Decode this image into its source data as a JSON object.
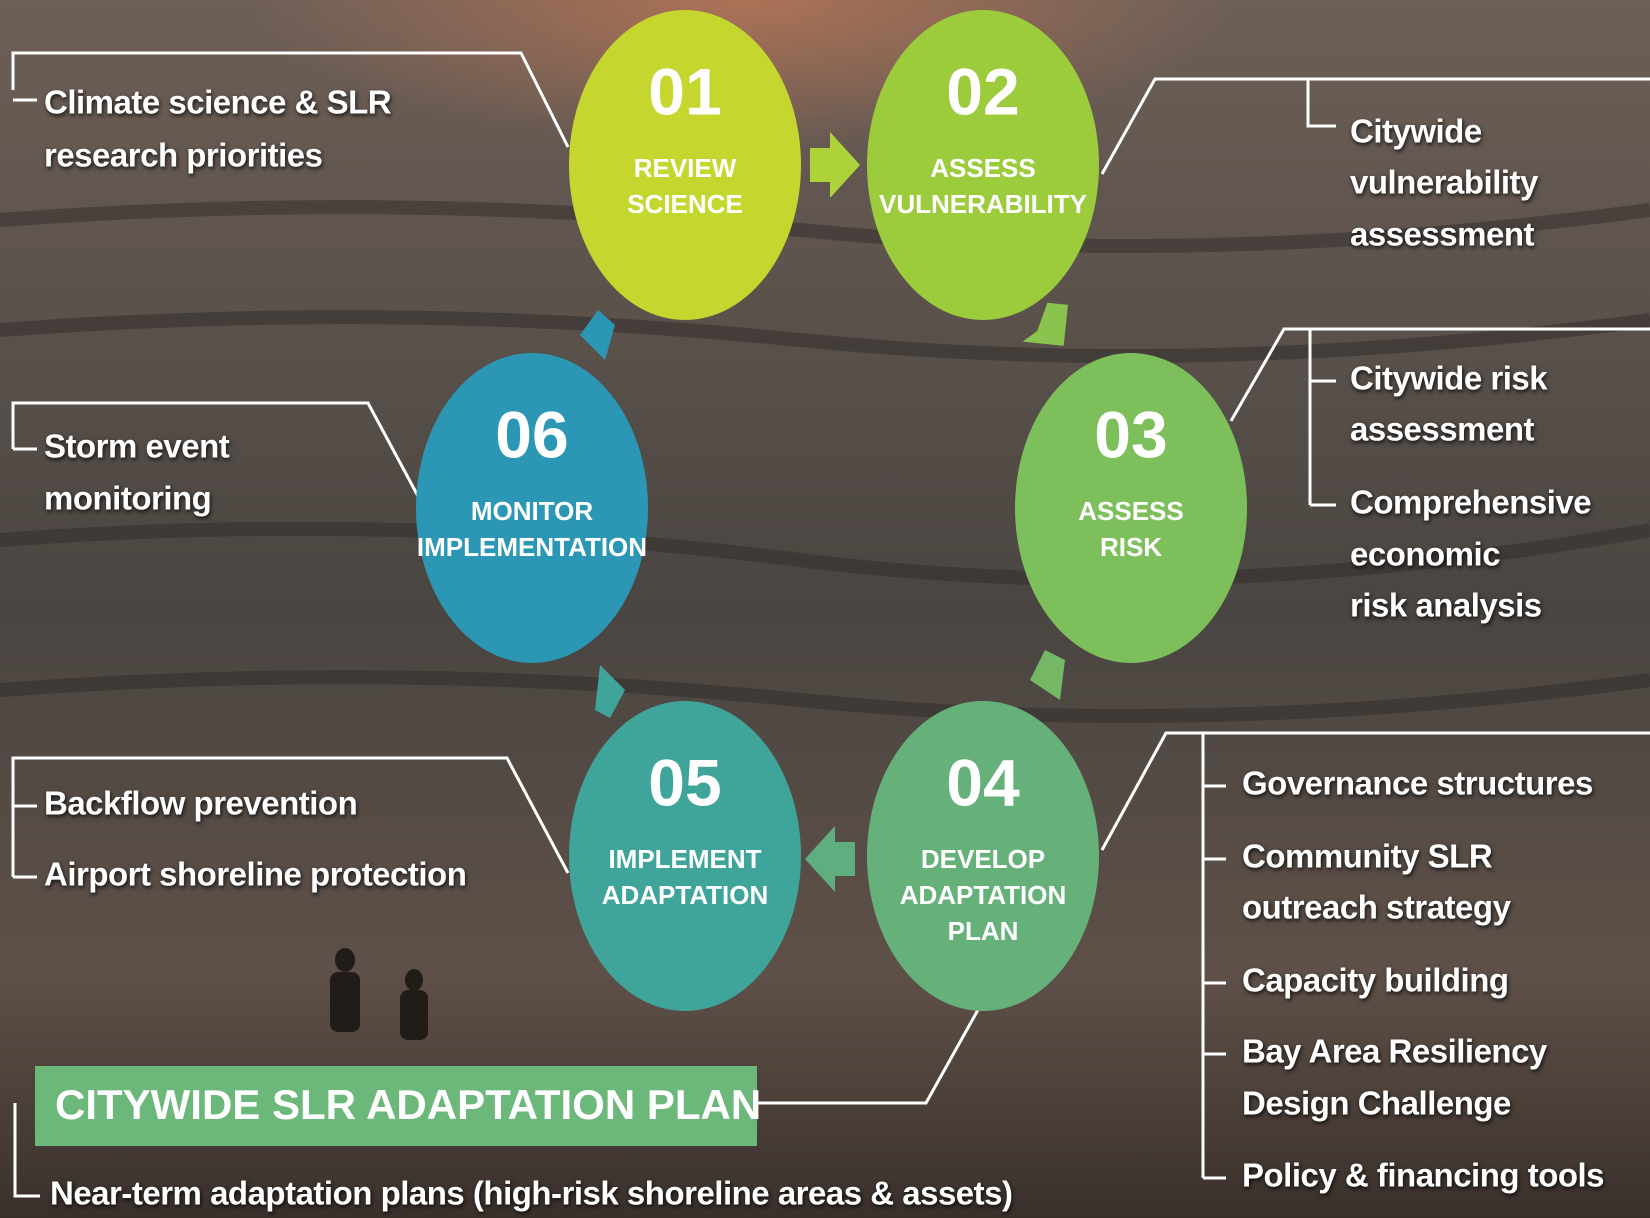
{
  "steps": [
    {
      "number": "01",
      "label": [
        "REVIEW",
        "SCIENCE"
      ],
      "notes": [
        [
          "Climate science & SLR",
          "research priorities"
        ]
      ]
    },
    {
      "number": "02",
      "label": [
        "ASSESS",
        "VULNERABILITY"
      ],
      "notes": [
        [
          "Citywide",
          "vulnerability",
          "assessment"
        ]
      ]
    },
    {
      "number": "03",
      "label": [
        "ASSESS",
        "RISK"
      ],
      "notes": [
        [
          "Citywide risk",
          "assessment"
        ],
        [
          "Comprehensive",
          "economic",
          "risk analysis"
        ]
      ]
    },
    {
      "number": "04",
      "label": [
        "DEVELOP",
        "ADAPTATION",
        "PLAN"
      ],
      "notes": [
        [
          "Governance structures"
        ],
        [
          "Community SLR",
          "outreach strategy"
        ],
        [
          "Capacity building"
        ],
        [
          "Bay Area Resiliency",
          "Design Challenge"
        ],
        [
          "Policy & financing tools"
        ]
      ]
    },
    {
      "number": "05",
      "label": [
        "IMPLEMENT",
        "ADAPTATION"
      ],
      "notes": [
        [
          "Backflow prevention"
        ],
        [
          "Airport shoreline protection"
        ]
      ]
    },
    {
      "number": "06",
      "label": [
        "MONITOR",
        "IMPLEMENTATION"
      ],
      "notes": [
        [
          "Storm event",
          "monitoring"
        ]
      ]
    }
  ],
  "plan": {
    "title": "CITYWIDE SLR ADAPTATION PLAN",
    "note": "Near-term adaptation plans (high-risk shoreline areas & assets)"
  }
}
